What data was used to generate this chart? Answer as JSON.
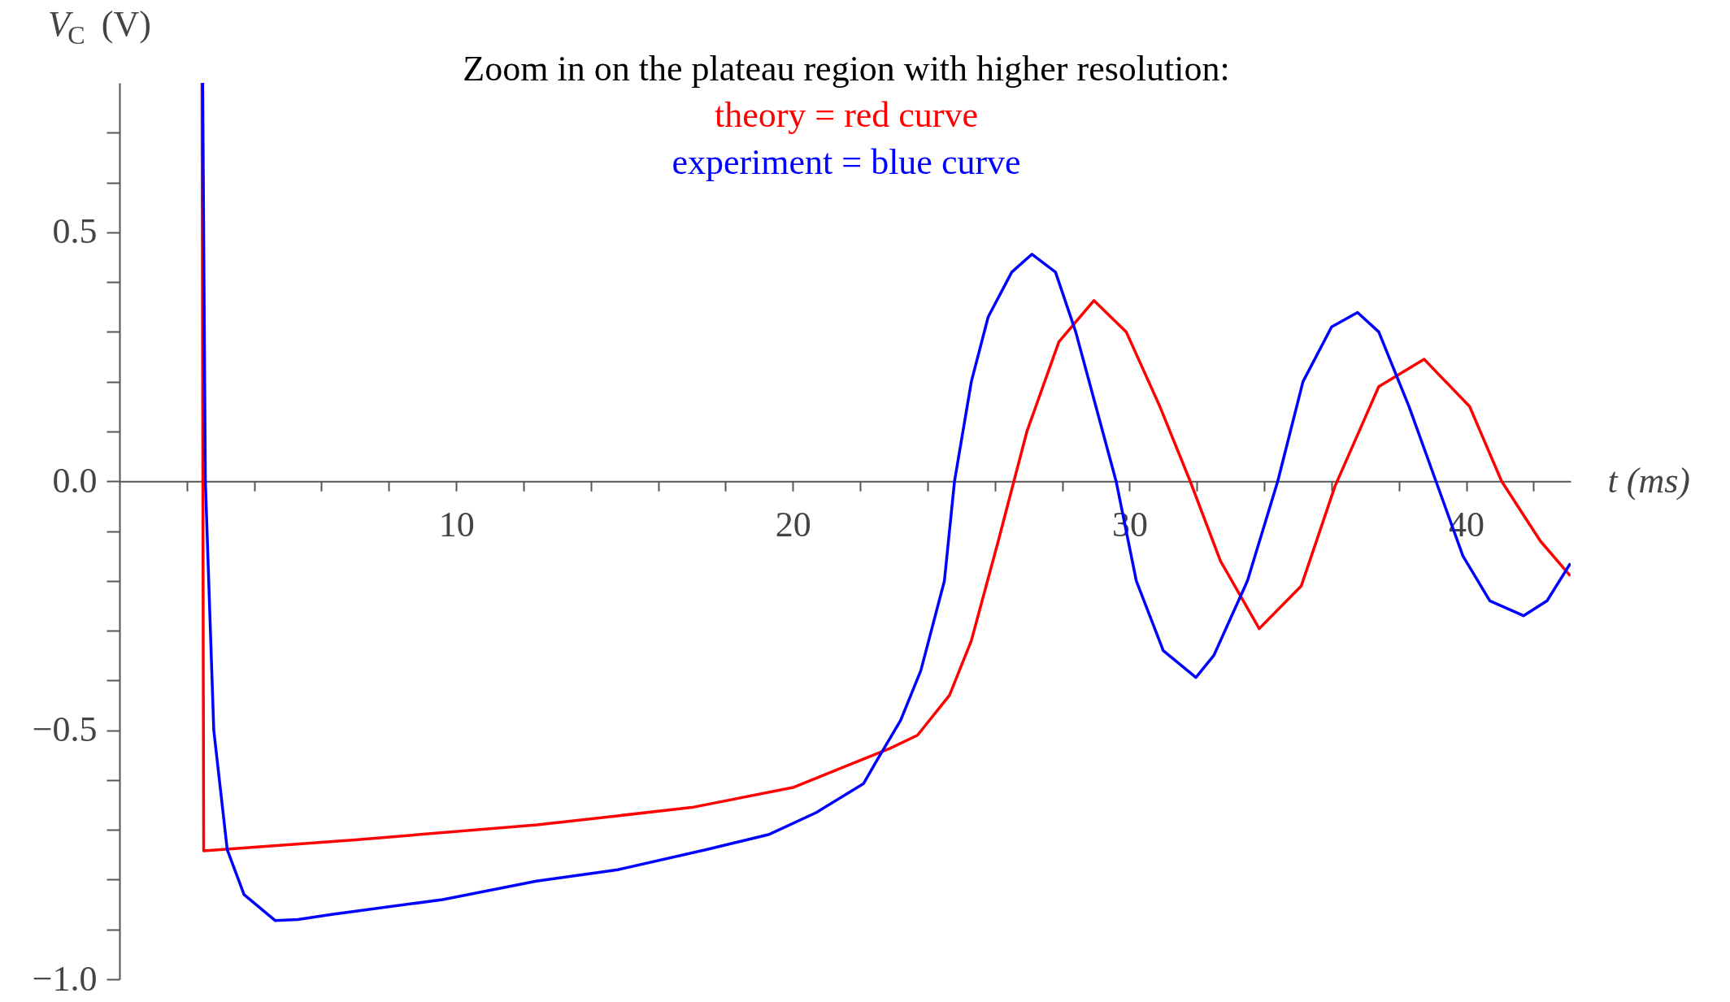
{
  "chart_data": {
    "type": "line",
    "title": "Zoom in on the plateau region with higher resolution:",
    "xlabel": "t (ms)",
    "ylabel": "V$_{C}$ (V)",
    "xlim": [
      0,
      43.1
    ],
    "ylim": [
      -1.0,
      0.8
    ],
    "xticks": [
      {
        "value": 2,
        "label": null
      },
      {
        "value": 4,
        "label": null
      },
      {
        "value": 6,
        "label": null
      },
      {
        "value": 8,
        "label": null
      },
      10,
      {
        "value": 12,
        "label": null
      },
      {
        "value": 14,
        "label": null
      },
      {
        "value": 16,
        "label": null
      },
      {
        "value": 18,
        "label": null
      },
      20,
      {
        "value": 22,
        "label": null
      },
      {
        "value": 24,
        "label": null
      },
      {
        "value": 26,
        "label": null
      },
      {
        "value": 28,
        "label": null
      },
      30,
      {
        "value": 32,
        "label": null
      },
      {
        "value": 34,
        "label": null
      },
      {
        "value": 36,
        "label": null
      },
      {
        "value": 38,
        "label": null
      },
      40,
      {
        "value": 42,
        "label": null
      }
    ],
    "yticks": [
      {
        "value": -1.0,
        "label": "−1.0"
      },
      {
        "value": -0.9,
        "label": null
      },
      {
        "value": -0.8,
        "label": null
      },
      {
        "value": -0.7,
        "label": null
      },
      {
        "value": -0.6,
        "label": null
      },
      {
        "value": -0.5,
        "label": "−0.5"
      },
      {
        "value": -0.4,
        "label": null
      },
      {
        "value": -0.3,
        "label": null
      },
      {
        "value": -0.2,
        "label": null
      },
      {
        "value": -0.1,
        "label": null
      },
      {
        "value": 0.0,
        "label": "0.0"
      },
      {
        "value": 0.1,
        "label": null
      },
      {
        "value": 0.2,
        "label": null
      },
      {
        "value": 0.3,
        "label": null
      },
      {
        "value": 0.4,
        "label": null
      },
      {
        "value": 0.5,
        "label": "0.5"
      },
      {
        "value": 0.6,
        "label": null
      },
      {
        "value": 0.7,
        "label": null
      }
    ],
    "grid": false,
    "legend": "top",
    "marker": "none",
    "line_style": "solid",
    "series": [
      {
        "name": "theory = red curve",
        "color": "#ff0000",
        "x": [
          2.45,
          2.5,
          7,
          12.4,
          17,
          20,
          22.9,
          23.7,
          24.65,
          25.3,
          26.1,
          26.95,
          27.9,
          28.94,
          29.9,
          30.9,
          31.8,
          32.7,
          33.85,
          35.1,
          36.1,
          37.4,
          38.75,
          40.1,
          41.05,
          42.2,
          43.09
        ],
        "values": [
          0.8,
          -0.742,
          -0.72,
          -0.69,
          -0.655,
          -0.615,
          -0.536,
          -0.51,
          -0.43,
          -0.32,
          -0.12,
          0.1,
          0.28,
          0.363,
          0.3,
          0.15,
          0.0,
          -0.16,
          -0.296,
          -0.21,
          -0.01,
          0.19,
          0.245,
          0.15,
          0.0,
          -0.12,
          -0.19
        ]
      },
      {
        "name": "experiment = blue curve",
        "color": "#0000ff",
        "x": [
          2.47,
          2.55,
          2.8,
          3.2,
          3.7,
          4.62,
          5.3,
          6.3,
          9.6,
          12.38,
          14.8,
          17.4,
          19.3,
          20.7,
          22.1,
          22.5,
          23.2,
          23.8,
          24.5,
          24.8,
          25.3,
          25.8,
          26.5,
          27.1,
          27.8,
          28.4,
          29.0,
          29.6,
          30.2,
          31.0,
          31.97,
          32.5,
          33.5,
          34.4,
          35.15,
          36.0,
          36.77,
          37.4,
          38.3,
          39.1,
          39.9,
          40.7,
          41.7,
          42.4,
          43.09
        ],
        "values": [
          0.8,
          0.0,
          -0.5,
          -0.74,
          -0.83,
          -0.882,
          -0.88,
          -0.87,
          -0.84,
          -0.803,
          -0.78,
          -0.74,
          -0.709,
          -0.665,
          -0.607,
          -0.56,
          -0.48,
          -0.38,
          -0.2,
          0.0,
          0.2,
          0.33,
          0.42,
          0.456,
          0.42,
          0.3,
          0.15,
          0.0,
          -0.2,
          -0.34,
          -0.394,
          -0.35,
          -0.2,
          0.0,
          0.2,
          0.31,
          0.339,
          0.3,
          0.15,
          0.0,
          -0.15,
          -0.24,
          -0.27,
          -0.24,
          -0.165
        ]
      }
    ]
  }
}
